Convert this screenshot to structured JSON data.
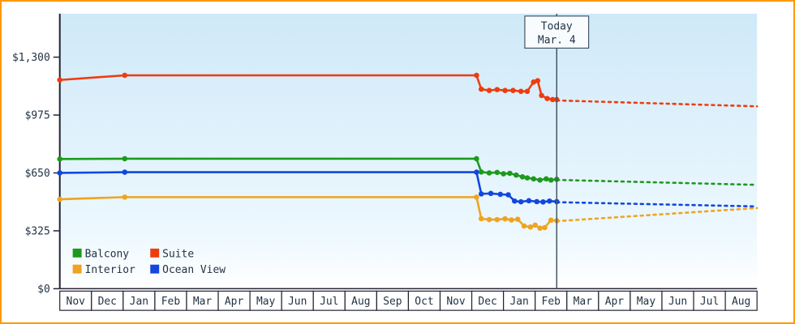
{
  "app": {
    "border_color": "#ff9900",
    "axis_color": "#222233",
    "today_line_color": "#445566",
    "today_box_fill": "#f8fcff"
  },
  "chart_data": {
    "type": "line",
    "title": "",
    "plot": {
      "bg_top": "#cfe9f8",
      "bg_mid": "#edf8fe",
      "bg_bottom": "#ffffff"
    },
    "y_axis": {
      "max": 1300,
      "ticks": [
        {
          "label": "$1,300",
          "value": 1300
        },
        {
          "label": "$975",
          "value": 975
        },
        {
          "label": "$650",
          "value": 650
        },
        {
          "label": "$325",
          "value": 325
        },
        {
          "label": "$0",
          "value": 0
        }
      ]
    },
    "x_axis": {
      "months": [
        "Nov",
        "Dec",
        "Jan",
        "Feb",
        "Mar",
        "Apr",
        "May",
        "Jun",
        "Jul",
        "Aug",
        "Sep",
        "Oct",
        "Nov",
        "Dec",
        "Jan",
        "Feb",
        "Mar",
        "Apr",
        "May",
        "Jun",
        "Jul",
        "Aug"
      ]
    },
    "today": {
      "label_line1": "Today",
      "label_line2": "Mar. 4",
      "x_month_units": 15.68
    },
    "series": [
      {
        "name": "Balcony",
        "color": "#1c9a1c",
        "solid": [
          [
            0,
            728
          ],
          [
            2.05,
            730
          ],
          [
            13.15,
            730
          ],
          [
            13.3,
            655
          ],
          [
            13.55,
            650
          ],
          [
            13.8,
            653
          ],
          [
            14.0,
            645
          ],
          [
            14.2,
            648
          ],
          [
            14.4,
            638
          ],
          [
            14.6,
            628
          ],
          [
            14.75,
            622
          ],
          [
            14.95,
            617
          ],
          [
            15.15,
            610
          ],
          [
            15.35,
            617
          ],
          [
            15.5,
            610
          ],
          [
            15.68,
            614
          ]
        ],
        "dotted": [
          [
            15.68,
            611
          ],
          [
            22,
            583
          ]
        ]
      },
      {
        "name": "Suite",
        "color": "#ee3c0f",
        "solid": [
          [
            0,
            1172
          ],
          [
            2.05,
            1198
          ],
          [
            13.15,
            1198
          ],
          [
            13.3,
            1120
          ],
          [
            13.55,
            1113
          ],
          [
            13.8,
            1118
          ],
          [
            14.05,
            1113
          ],
          [
            14.3,
            1113
          ],
          [
            14.55,
            1108
          ],
          [
            14.75,
            1108
          ],
          [
            14.95,
            1160
          ],
          [
            15.08,
            1168
          ],
          [
            15.2,
            1085
          ],
          [
            15.38,
            1068
          ],
          [
            15.55,
            1062
          ],
          [
            15.68,
            1062
          ]
        ],
        "dotted": [
          [
            15.68,
            1057
          ],
          [
            22,
            1024
          ]
        ]
      },
      {
        "name": "Interior",
        "color": "#efa41f",
        "solid": [
          [
            0,
            502
          ],
          [
            2.05,
            514
          ],
          [
            13.15,
            514
          ],
          [
            13.3,
            393
          ],
          [
            13.55,
            388
          ],
          [
            13.8,
            388
          ],
          [
            14.05,
            392
          ],
          [
            14.25,
            386
          ],
          [
            14.45,
            390
          ],
          [
            14.65,
            352
          ],
          [
            14.85,
            346
          ],
          [
            15.0,
            357
          ],
          [
            15.15,
            340
          ],
          [
            15.3,
            343
          ],
          [
            15.5,
            385
          ],
          [
            15.68,
            382
          ]
        ],
        "dotted": [
          [
            15.68,
            379
          ],
          [
            22,
            453
          ]
        ]
      },
      {
        "name": "Ocean View",
        "color": "#1246dd",
        "solid": [
          [
            0,
            650
          ],
          [
            2.05,
            654
          ],
          [
            13.15,
            654
          ],
          [
            13.3,
            532
          ],
          [
            13.6,
            535
          ],
          [
            13.9,
            530
          ],
          [
            14.15,
            527
          ],
          [
            14.35,
            492
          ],
          [
            14.55,
            488
          ],
          [
            14.8,
            494
          ],
          [
            15.05,
            489
          ],
          [
            15.25,
            487
          ],
          [
            15.45,
            492
          ],
          [
            15.68,
            489
          ]
        ],
        "dotted": [
          [
            15.68,
            486
          ],
          [
            22,
            462
          ]
        ]
      }
    ],
    "legend": {
      "order": [
        "Balcony",
        "Suite",
        "Interior",
        "Ocean View"
      ]
    }
  }
}
